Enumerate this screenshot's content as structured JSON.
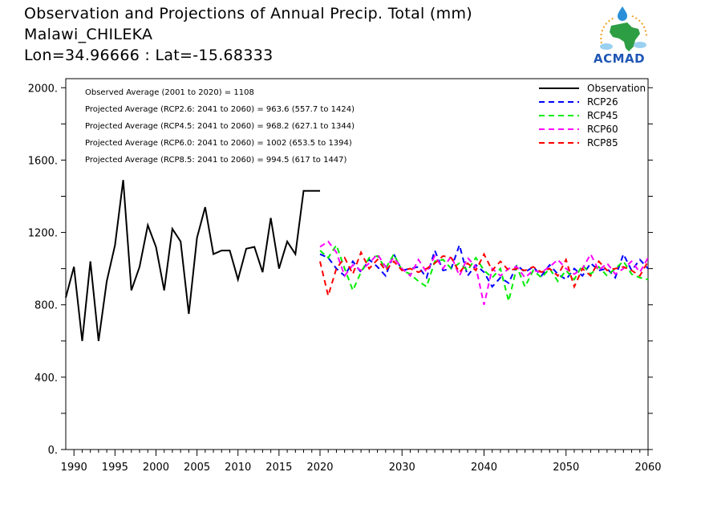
{
  "header": {
    "line1": "Observation and Projections of Annual Precip. Total (mm)",
    "line2": "Malawi_CHILEKA",
    "line3": "Lon=34.96666 : Lat=-15.68333"
  },
  "logo": {
    "text": "ACMAD"
  },
  "chart_data": {
    "type": "line",
    "xlim": [
      1989,
      2060
    ],
    "ylim": [
      0,
      2050
    ],
    "x_ticks": [
      1990,
      1995,
      2000,
      2005,
      2010,
      2015,
      2020,
      2030,
      2040,
      2050,
      2060
    ],
    "x_tick_labels": [
      "1990",
      "1995",
      "2000",
      "2005",
      "2010",
      "2015",
      "2020",
      "2030",
      "2040",
      "2050",
      "2060"
    ],
    "y_ticks": [
      0,
      400,
      800,
      1200,
      1600,
      2000
    ],
    "y_tick_labels": [
      "0.",
      "400.",
      "800.",
      "1200.",
      "1600.",
      "2000."
    ],
    "grid": false,
    "legend_position": "top-right",
    "annotations": [
      "Observed Average (2001 to 2020) = 1108",
      "Projected Average (RCP2.6: 2041 to 2060) =  963.6 (557.7 to 1424)",
      "Projected Average (RCP4.5: 2041 to 2060) =  968.2 (627.1 to 1344)",
      "Projected Average (RCP6.0: 2041 to 2060) =  1002 (653.5 to 1394)",
      "Projected Average (RCP8.5: 2041 to 2060) =  994.5 (617 to 1447)"
    ],
    "observation": {
      "name": "Observation",
      "color": "#000000",
      "x": [
        1989,
        1990,
        1991,
        1992,
        1993,
        1994,
        1995,
        1996,
        1997,
        1998,
        1999,
        2000,
        2001,
        2002,
        2003,
        2004,
        2005,
        2006,
        2007,
        2008,
        2009,
        2010,
        2011,
        2012,
        2013,
        2014,
        2015,
        2016,
        2017,
        2018,
        2019,
        2020
      ],
      "y": [
        840,
        1010,
        600,
        1040,
        600,
        930,
        1130,
        1490,
        880,
        1010,
        1240,
        1120,
        880,
        1220,
        1150,
        750,
        1170,
        1340,
        1080,
        1100,
        1100,
        940,
        1110,
        1120,
        980,
        1280,
        1000,
        1150,
        1080,
        1430,
        1430,
        1430
      ]
    },
    "series": [
      {
        "name": "RCP26",
        "color": "#0000ff",
        "x": [
          2020,
          2021,
          2022,
          2023,
          2024,
          2025,
          2026,
          2027,
          2028,
          2029,
          2030,
          2031,
          2032,
          2033,
          2034,
          2035,
          2036,
          2037,
          2038,
          2039,
          2040,
          2041,
          2042,
          2043,
          2044,
          2045,
          2046,
          2047,
          2048,
          2049,
          2050,
          2051,
          2052,
          2053,
          2054,
          2055,
          2056,
          2057,
          2058,
          2059,
          2060
        ],
        "y": [
          1080,
          1060,
          1000,
          960,
          1040,
          980,
          1050,
          1010,
          960,
          1080,
          990,
          1000,
          1010,
          950,
          1100,
          990,
          1000,
          1130,
          960,
          1020,
          980,
          900,
          950,
          920,
          1020,
          980,
          1010,
          960,
          1020,
          970,
          940,
          1000,
          960,
          1030,
          990,
          1000,
          950,
          1080,
          990,
          1050,
          1000
        ]
      },
      {
        "name": "RCP45",
        "color": "#00ee00",
        "x": [
          2020,
          2021,
          2022,
          2023,
          2024,
          2025,
          2026,
          2027,
          2028,
          2029,
          2030,
          2031,
          2032,
          2033,
          2034,
          2035,
          2036,
          2037,
          2038,
          2039,
          2040,
          2041,
          2042,
          2043,
          2044,
          2045,
          2046,
          2047,
          2048,
          2049,
          2050,
          2051,
          2052,
          2053,
          2054,
          2055,
          2056,
          2057,
          2058,
          2059,
          2060
        ],
        "y": [
          1100,
          1060,
          1130,
          1000,
          880,
          980,
          1060,
          1070,
          1000,
          1080,
          990,
          970,
          930,
          900,
          1040,
          1050,
          1000,
          1030,
          990,
          1060,
          990,
          950,
          1000,
          820,
          1010,
          900,
          990,
          950,
          1000,
          930,
          990,
          940,
          1020,
          970,
          1010,
          960,
          1000,
          1040,
          970,
          950,
          940
        ]
      },
      {
        "name": "RCP60",
        "color": "#ff00ff",
        "x": [
          2020,
          2021,
          2022,
          2023,
          2024,
          2025,
          2026,
          2027,
          2028,
          2029,
          2030,
          2031,
          2032,
          2033,
          2034,
          2035,
          2036,
          2037,
          2038,
          2039,
          2040,
          2041,
          2042,
          2043,
          2044,
          2045,
          2046,
          2047,
          2048,
          2049,
          2050,
          2051,
          2052,
          2053,
          2054,
          2055,
          2056,
          2057,
          2058,
          2059,
          2060
        ],
        "y": [
          1120,
          1150,
          1090,
          960,
          1020,
          990,
          1030,
          1080,
          1010,
          1060,
          1000,
          960,
          1050,
          980,
          1070,
          1000,
          1070,
          960,
          1060,
          1010,
          800,
          1000,
          960,
          1000,
          1010,
          950,
          990,
          980,
          1010,
          1050,
          1000,
          970,
          1000,
          1080,
          990,
          1030,
          970,
          1000,
          1040,
          980,
          1060
        ]
      },
      {
        "name": "RCP85",
        "color": "#ff0000",
        "x": [
          2020,
          2021,
          2022,
          2023,
          2024,
          2025,
          2026,
          2027,
          2028,
          2029,
          2030,
          2031,
          2032,
          2033,
          2034,
          2035,
          2036,
          2037,
          2038,
          2039,
          2040,
          2041,
          2042,
          2043,
          2044,
          2045,
          2046,
          2047,
          2048,
          2049,
          2050,
          2051,
          2052,
          2053,
          2054,
          2055,
          2056,
          2057,
          2058,
          2059,
          2060
        ],
        "y": [
          1040,
          850,
          1000,
          1060,
          970,
          1090,
          1000,
          1050,
          990,
          1040,
          990,
          1000,
          980,
          1000,
          1030,
          1070,
          1060,
          980,
          1030,
          990,
          1080,
          990,
          1040,
          990,
          1000,
          990,
          1010,
          980,
          1000,
          960,
          1050,
          900,
          1000,
          960,
          1040,
          990,
          1000,
          1010,
          990,
          960,
          1040
        ]
      }
    ]
  }
}
